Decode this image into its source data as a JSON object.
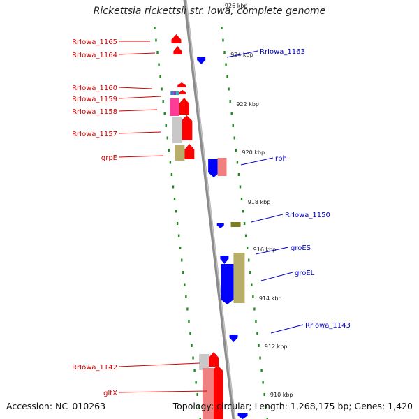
{
  "title": "Rickettsia rickettsii str. Iowa, complete genome",
  "footer": {
    "accession": "Accession: NC_010263",
    "stats": "Topology: circular; Length: 1,268,175 bp; Genes: 1,420"
  },
  "colors": {
    "background": "#ffffff",
    "backbone": "#8c8c8c",
    "tick": "#1f8a1f",
    "forward_label": "#d40000",
    "reverse_label": "#0000c8",
    "gene_red": "#ff0000",
    "gene_blue": "#0000ff",
    "gene_pink": "#ff3d96",
    "gene_silver": "#c8c8c8",
    "gene_olive": "#b9ad6a",
    "gene_salmon": "#f08080"
  },
  "scale_labels": [
    "926 kbp",
    "924 kbp",
    "922 kbp",
    "920 kbp",
    "918 kbp",
    "916 kbp",
    "914 kbp",
    "912 kbp",
    "910 kbp"
  ],
  "forward_gene_labels": [
    "RrIowa_1165",
    "RrIowa_1164",
    "RrIowa_1160",
    "RrIowa_1159",
    "RrIowa_1158",
    "RrIowa_1157",
    "grpE",
    "RrIowa_1142",
    "gltX"
  ],
  "reverse_gene_labels": [
    "RrIowa_1163",
    "rph",
    "RrIowa_1150",
    "groES",
    "groEL",
    "RrIowa_1143"
  ]
}
